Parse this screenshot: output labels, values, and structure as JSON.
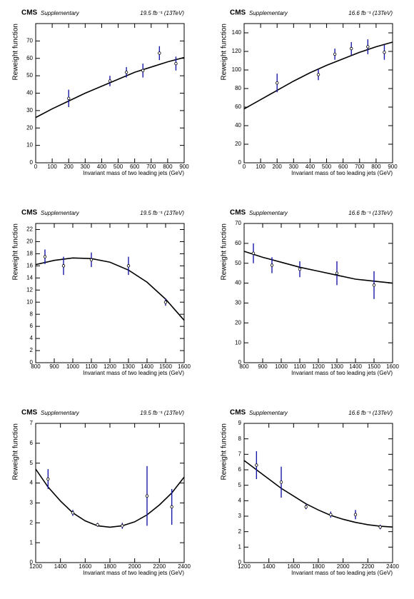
{
  "chart_data": [
    {
      "type": "scatter",
      "brand": "CMS",
      "label": "Supplementary",
      "lumi": "19.5 fb⁻¹ (13TeV)",
      "xlabel": "Invariant mass of two leading jets (GeV)",
      "ylabel": "Reweight function",
      "xlim": [
        0,
        900
      ],
      "xticks": [
        0,
        100,
        200,
        300,
        400,
        500,
        600,
        700,
        800,
        900
      ],
      "ylim": [
        0,
        80
      ],
      "yticks": [
        0,
        10,
        20,
        30,
        40,
        50,
        60,
        70
      ],
      "x": [
        200,
        450,
        550,
        650,
        750,
        850
      ],
      "values": [
        37,
        47,
        52,
        53,
        63,
        57
      ],
      "errors": [
        5,
        3,
        3,
        4,
        4,
        4
      ],
      "color": "#1a1aa8",
      "fit": {
        "x": [
          0,
          100,
          200,
          300,
          400,
          500,
          600,
          700,
          800,
          900
        ],
        "values": [
          26,
          31,
          35.5,
          40,
          44,
          48,
          52,
          55,
          58,
          60.5
        ]
      }
    },
    {
      "type": "scatter",
      "brand": "CMS",
      "label": "Supplementary",
      "lumi": "16.6 fb⁻¹ (13TeV)",
      "xlabel": "Invariant mass of two leading jets (GeV)",
      "ylabel": "Reweight function",
      "xlim": [
        0,
        900
      ],
      "xticks": [
        0,
        100,
        200,
        300,
        400,
        500,
        600,
        700,
        800,
        900
      ],
      "ylim": [
        0,
        150
      ],
      "yticks": [
        0,
        20,
        40,
        60,
        80,
        100,
        120,
        140
      ],
      "x": [
        200,
        450,
        550,
        650,
        750,
        850
      ],
      "values": [
        86,
        95,
        117,
        123,
        125,
        119
      ],
      "errors": [
        10,
        6,
        6,
        7,
        8,
        8
      ],
      "color": "#1a1aa8",
      "fit": {
        "x": [
          0,
          100,
          200,
          300,
          400,
          500,
          600,
          700,
          800,
          900
        ],
        "values": [
          58,
          68,
          78,
          88,
          97,
          105,
          112,
          119,
          125,
          130
        ]
      }
    },
    {
      "type": "scatter",
      "brand": "CMS",
      "label": "Supplementary",
      "lumi": "19.5 fb⁻¹ (13TeV)",
      "xlabel": "Invariant mass of two leading jets (GeV)",
      "ylabel": "Reweight function",
      "xlim": [
        800,
        1600
      ],
      "xticks": [
        800,
        900,
        1000,
        1100,
        1200,
        1300,
        1400,
        1500,
        1600
      ],
      "ylim": [
        0,
        23
      ],
      "yticks": [
        0,
        2,
        4,
        6,
        8,
        10,
        12,
        14,
        16,
        18,
        20,
        22
      ],
      "x": [
        850,
        950,
        1100,
        1300,
        1500
      ],
      "values": [
        17.5,
        16,
        17,
        16,
        10
      ],
      "errors": [
        1.2,
        1.5,
        1.2,
        1.5,
        0.6
      ],
      "color": "#1a1aa8",
      "fit": {
        "x": [
          800,
          900,
          1000,
          1100,
          1200,
          1300,
          1400,
          1500,
          1600
        ],
        "values": [
          16.2,
          16.9,
          17.3,
          17.2,
          16.6,
          15.3,
          13.3,
          10.5,
          7
        ]
      }
    },
    {
      "type": "scatter",
      "brand": "CMS",
      "label": "Supplementary",
      "lumi": "16.6 fb⁻¹ (13TeV)",
      "xlabel": "Invariant mass of two leading jets (GeV)",
      "ylabel": "Reweight function",
      "xlim": [
        800,
        1600
      ],
      "xticks": [
        800,
        900,
        1000,
        1100,
        1200,
        1300,
        1400,
        1500,
        1600
      ],
      "ylim": [
        0,
        70
      ],
      "yticks": [
        0,
        10,
        20,
        30,
        40,
        50,
        60,
        70
      ],
      "x": [
        850,
        950,
        1100,
        1300,
        1500
      ],
      "values": [
        55,
        49,
        47,
        45,
        39
      ],
      "errors": [
        5,
        4,
        4,
        6,
        7
      ],
      "color": "#1a1aa8",
      "fit": {
        "x": [
          800,
          900,
          1000,
          1100,
          1200,
          1300,
          1400,
          1500,
          1600
        ],
        "values": [
          56,
          53,
          50.5,
          48,
          46,
          44,
          42,
          41,
          40
        ]
      }
    },
    {
      "type": "scatter",
      "brand": "CMS",
      "label": "Supplementary",
      "lumi": "19.5 fb⁻¹ (13TeV)",
      "xlabel": "Invariant mass of two leading jets (GeV)",
      "ylabel": "Reweight function",
      "xlim": [
        1200,
        2400
      ],
      "xticks": [
        1200,
        1400,
        1600,
        1800,
        2000,
        2200,
        2400
      ],
      "ylim": [
        0,
        7
      ],
      "yticks": [
        0,
        1,
        2,
        3,
        4,
        5,
        6,
        7
      ],
      "x": [
        1300,
        1500,
        1700,
        1900,
        2100,
        2300
      ],
      "values": [
        4.2,
        2.5,
        1.9,
        1.85,
        3.35,
        2.8
      ],
      "errors": [
        0.5,
        0.15,
        0.1,
        0.15,
        1.5,
        0.9
      ],
      "color": "#1a1aa8",
      "fit": {
        "x": [
          1200,
          1300,
          1400,
          1500,
          1600,
          1700,
          1800,
          1900,
          2000,
          2100,
          2200,
          2300,
          2400
        ],
        "values": [
          4.7,
          3.8,
          3.1,
          2.5,
          2.1,
          1.85,
          1.78,
          1.85,
          2.05,
          2.4,
          2.9,
          3.5,
          4.3
        ]
      }
    },
    {
      "type": "scatter",
      "brand": "CMS",
      "label": "Supplementary",
      "lumi": "16.6 fb⁻¹ (13TeV)",
      "xlabel": "Invariant mass of two leading jets (GeV)",
      "ylabel": "Reweight function",
      "xlim": [
        1200,
        2400
      ],
      "xticks": [
        1200,
        1400,
        1600,
        1800,
        2000,
        2200,
        2400
      ],
      "ylim": [
        0,
        9
      ],
      "yticks": [
        0,
        1,
        2,
        3,
        4,
        5,
        6,
        7,
        8,
        9
      ],
      "x": [
        1300,
        1500,
        1700,
        1900,
        2100,
        2300
      ],
      "values": [
        6.3,
        5.2,
        3.6,
        3.1,
        3.1,
        2.3
      ],
      "errors": [
        0.9,
        1,
        0.15,
        0.2,
        0.3,
        0.15
      ],
      "color": "#1a1aa8",
      "fit": {
        "x": [
          1200,
          1300,
          1400,
          1500,
          1600,
          1700,
          1800,
          1900,
          2000,
          2100,
          2200,
          2300,
          2400
        ],
        "values": [
          6.6,
          6.0,
          5.4,
          4.8,
          4.3,
          3.8,
          3.4,
          3.05,
          2.8,
          2.6,
          2.45,
          2.35,
          2.3
        ]
      }
    }
  ]
}
